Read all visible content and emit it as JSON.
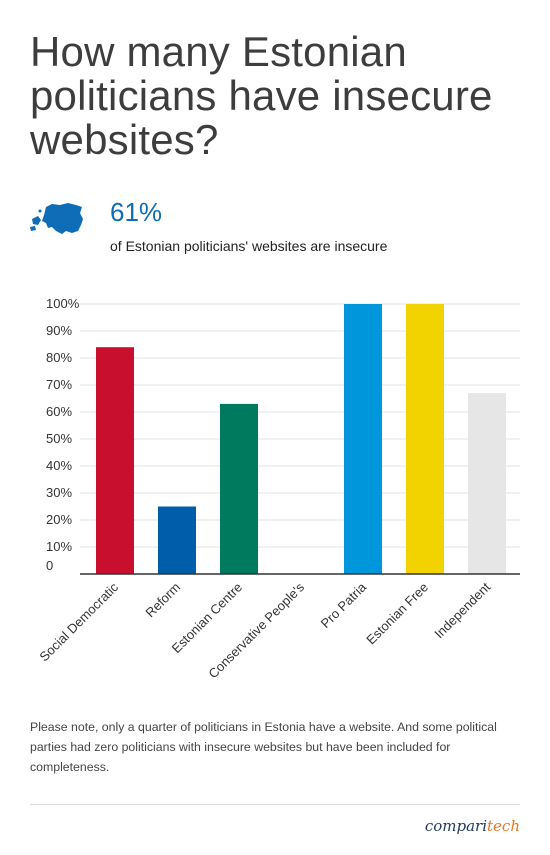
{
  "title": "How many Estonian politicians have insecure websites?",
  "stat": {
    "value": "61%",
    "text": "of Estonian politicians' websites are insecure",
    "icon": "estonia-map-icon",
    "color": "#0f6db8"
  },
  "chart_data": {
    "type": "bar",
    "categories": [
      "Social Democratic",
      "Reform",
      "Estonian Centre",
      "Conservative People's",
      "Pro Patria",
      "Estonian Free",
      "Independent"
    ],
    "values": [
      84,
      25,
      63,
      0,
      100,
      100,
      67
    ],
    "colors": [
      "#c8102e",
      "#005daa",
      "#007a5e",
      "#999999",
      "#0096db",
      "#f2d300",
      "#e6e6e6"
    ],
    "yticks": [
      "0",
      "10%",
      "20%",
      "30%",
      "40%",
      "50%",
      "60%",
      "70%",
      "80%",
      "90%",
      "100%"
    ],
    "ylim": [
      0,
      100
    ],
    "grid": true,
    "title": "",
    "xlabel": "",
    "ylabel": ""
  },
  "note": "Please note, only a quarter of politicians in Estonia have a website. And some political parties had zero politicians with insecure websites but have been included for completeness.",
  "brand": {
    "part1": "compari",
    "part2": "tech"
  }
}
